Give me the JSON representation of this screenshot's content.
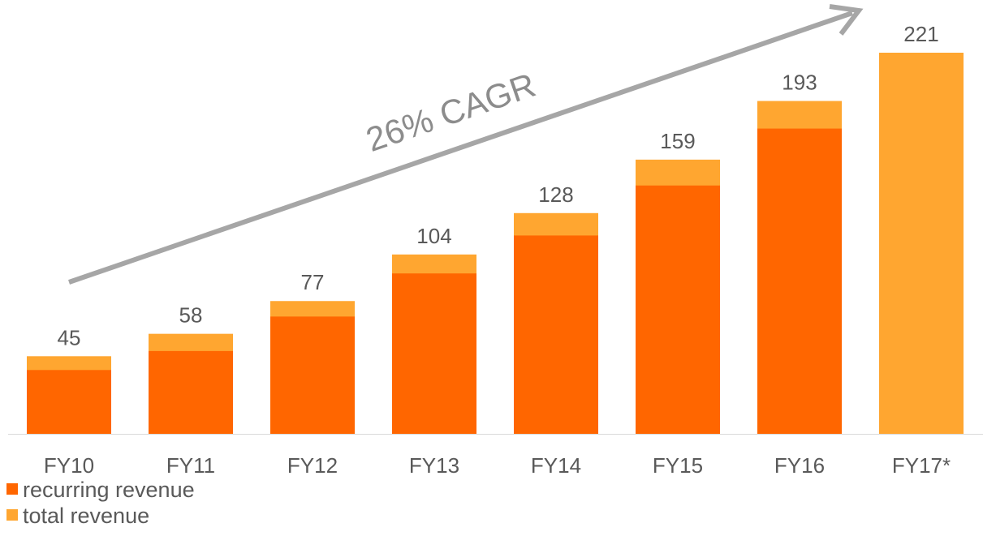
{
  "chart_data": {
    "type": "bar",
    "categories": [
      "FY10",
      "FY11",
      "FY12",
      "FY13",
      "FY14",
      "FY15",
      "FY16",
      "FY17*"
    ],
    "series": [
      {
        "name": "recurring revenue",
        "color": "#ff6600",
        "values": [
          37,
          48,
          68,
          93,
          115,
          144,
          177,
          null
        ]
      },
      {
        "name": "total revenue",
        "color": "#ffa630",
        "values": [
          45,
          58,
          77,
          104,
          128,
          159,
          193,
          221
        ]
      }
    ],
    "overlap": true,
    "value_labels_series": 1,
    "annotation": "26% CAGR",
    "legend": "bottom-left"
  }
}
